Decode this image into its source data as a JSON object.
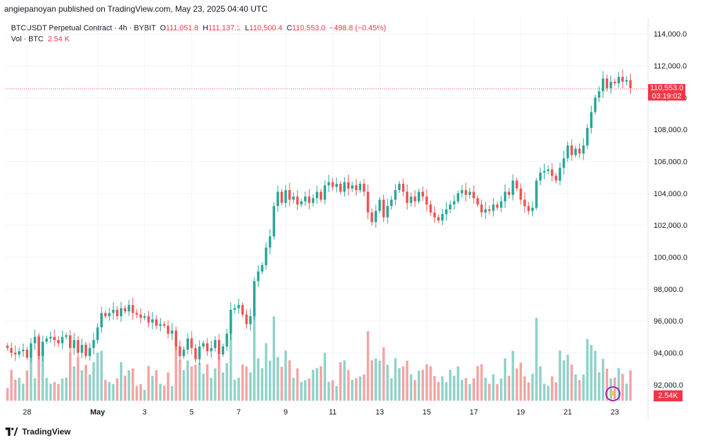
{
  "header": {
    "publisher": "angiepanoyan published on TradingView.com, May 23, 2025 04:40 UTC"
  },
  "legend": {
    "symbol": "BTCUSDT Perpetual Contract · 4h · BYBIT",
    "o_label": "O",
    "o": "111,051.8",
    "h_label": "H",
    "h": "111,137.1",
    "l_label": "L",
    "l": "110,500.4",
    "c_label": "C",
    "c": "110,553.0",
    "change": "−498.8 (−0.45%)",
    "vol_label": "Vol · BTC",
    "vol": "2.54 K"
  },
  "price_tag": {
    "price": "110,553.0",
    "countdown": "03:19:02"
  },
  "vol_tag": "2.54K",
  "footer": {
    "brand": "TradingView"
  },
  "colors": {
    "up": "#26a69a",
    "down": "#ef5350",
    "vol_up": "#8fd2c9",
    "vol_down": "#f5a3a3",
    "grid": "#f0f3fa",
    "axis": "#131722"
  },
  "chart_data": {
    "type": "candlestick",
    "title": "BTCUSDT Perpetual Contract · 4h · BYBIT",
    "ylim": [
      91000,
      115000
    ],
    "y_ticks": [
      92000,
      94000,
      96000,
      98000,
      100000,
      102000,
      104000,
      106000,
      108000,
      110000,
      112000,
      114000
    ],
    "y_tick_labels": [
      "92,000.0",
      "94,000.0",
      "96,000.0",
      "98,000.0",
      "100,000.0",
      "102,000.0",
      "104,000.0",
      "106,000.0",
      "108,000.0",
      "110,000.0",
      "112,000.0",
      "114,000.0"
    ],
    "x_tick_labels": [
      {
        "label": "28",
        "index": 5
      },
      {
        "label": "May",
        "index": 23
      },
      {
        "label": "3",
        "index": 35
      },
      {
        "label": "5",
        "index": 47
      },
      {
        "label": "7",
        "index": 59
      },
      {
        "label": "9",
        "index": 71
      },
      {
        "label": "11",
        "index": 83
      },
      {
        "label": "13",
        "index": 95
      },
      {
        "label": "15",
        "index": 107
      },
      {
        "label": "17",
        "index": 119
      },
      {
        "label": "19",
        "index": 131
      },
      {
        "label": "21",
        "index": 143
      },
      {
        "label": "23",
        "index": 155
      }
    ],
    "last_price": 110553,
    "closes": [
      94300,
      94000,
      93900,
      94100,
      94200,
      93700,
      94600,
      95000,
      93800,
      94700,
      94900,
      95000,
      94800,
      94600,
      95000,
      95100,
      94300,
      94800,
      94000,
      94500,
      93800,
      94300,
      94800,
      95600,
      96500,
      96300,
      96500,
      96700,
      96300,
      96800,
      96600,
      97000,
      96500,
      96400,
      96200,
      96300,
      95900,
      96100,
      95700,
      95800,
      95700,
      95200,
      95400,
      94400,
      93800,
      94200,
      94900,
      94300,
      93600,
      94400,
      94600,
      94100,
      94300,
      94800,
      93900,
      94400,
      95200,
      96700,
      96800,
      97000,
      96400,
      95800,
      96300,
      98500,
      99100,
      99500,
      100600,
      101300,
      103200,
      104100,
      103400,
      104200,
      103600,
      103800,
      103300,
      103500,
      103800,
      103400,
      103700,
      104100,
      103600,
      104500,
      104700,
      104400,
      104600,
      104100,
      104700,
      104300,
      104500,
      104200,
      104600,
      104100,
      102800,
      102200,
      102900,
      103600,
      102500,
      103200,
      103600,
      104200,
      104600,
      104100,
      103400,
      103800,
      103500,
      104100,
      103800,
      103300,
      102800,
      102500,
      102300,
      102700,
      103000,
      103300,
      103500,
      104000,
      104200,
      103900,
      104100,
      103700,
      103300,
      102800,
      103000,
      102900,
      103300,
      103100,
      103500,
      104100,
      103900,
      104800,
      104300,
      103600,
      103200,
      102900,
      103100,
      104800,
      105300,
      105400,
      105500,
      105100,
      104800,
      105600,
      106200,
      107000,
      106400,
      106800,
      106500,
      107000,
      108100,
      109100,
      110000,
      110400,
      111200,
      110600,
      111000,
      110900,
      111300,
      111000,
      111100,
      110600
    ]
  }
}
